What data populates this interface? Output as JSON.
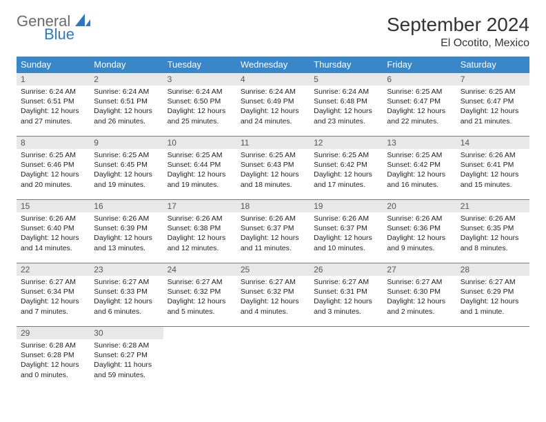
{
  "logo": {
    "text1": "General",
    "text2": "Blue"
  },
  "title": "September 2024",
  "location": "El Ocotito, Mexico",
  "header_bg": "#3a87c7",
  "header_fg": "#ffffff",
  "daynum_bg": "#e8e8e8",
  "border_color": "#3a87c7",
  "weekdays": [
    "Sunday",
    "Monday",
    "Tuesday",
    "Wednesday",
    "Thursday",
    "Friday",
    "Saturday"
  ],
  "days": [
    {
      "n": "1",
      "sunrise": "Sunrise: 6:24 AM",
      "sunset": "Sunset: 6:51 PM",
      "day": "Daylight: 12 hours and 27 minutes."
    },
    {
      "n": "2",
      "sunrise": "Sunrise: 6:24 AM",
      "sunset": "Sunset: 6:51 PM",
      "day": "Daylight: 12 hours and 26 minutes."
    },
    {
      "n": "3",
      "sunrise": "Sunrise: 6:24 AM",
      "sunset": "Sunset: 6:50 PM",
      "day": "Daylight: 12 hours and 25 minutes."
    },
    {
      "n": "4",
      "sunrise": "Sunrise: 6:24 AM",
      "sunset": "Sunset: 6:49 PM",
      "day": "Daylight: 12 hours and 24 minutes."
    },
    {
      "n": "5",
      "sunrise": "Sunrise: 6:24 AM",
      "sunset": "Sunset: 6:48 PM",
      "day": "Daylight: 12 hours and 23 minutes."
    },
    {
      "n": "6",
      "sunrise": "Sunrise: 6:25 AM",
      "sunset": "Sunset: 6:47 PM",
      "day": "Daylight: 12 hours and 22 minutes."
    },
    {
      "n": "7",
      "sunrise": "Sunrise: 6:25 AM",
      "sunset": "Sunset: 6:47 PM",
      "day": "Daylight: 12 hours and 21 minutes."
    },
    {
      "n": "8",
      "sunrise": "Sunrise: 6:25 AM",
      "sunset": "Sunset: 6:46 PM",
      "day": "Daylight: 12 hours and 20 minutes."
    },
    {
      "n": "9",
      "sunrise": "Sunrise: 6:25 AM",
      "sunset": "Sunset: 6:45 PM",
      "day": "Daylight: 12 hours and 19 minutes."
    },
    {
      "n": "10",
      "sunrise": "Sunrise: 6:25 AM",
      "sunset": "Sunset: 6:44 PM",
      "day": "Daylight: 12 hours and 19 minutes."
    },
    {
      "n": "11",
      "sunrise": "Sunrise: 6:25 AM",
      "sunset": "Sunset: 6:43 PM",
      "day": "Daylight: 12 hours and 18 minutes."
    },
    {
      "n": "12",
      "sunrise": "Sunrise: 6:25 AM",
      "sunset": "Sunset: 6:42 PM",
      "day": "Daylight: 12 hours and 17 minutes."
    },
    {
      "n": "13",
      "sunrise": "Sunrise: 6:25 AM",
      "sunset": "Sunset: 6:42 PM",
      "day": "Daylight: 12 hours and 16 minutes."
    },
    {
      "n": "14",
      "sunrise": "Sunrise: 6:26 AM",
      "sunset": "Sunset: 6:41 PM",
      "day": "Daylight: 12 hours and 15 minutes."
    },
    {
      "n": "15",
      "sunrise": "Sunrise: 6:26 AM",
      "sunset": "Sunset: 6:40 PM",
      "day": "Daylight: 12 hours and 14 minutes."
    },
    {
      "n": "16",
      "sunrise": "Sunrise: 6:26 AM",
      "sunset": "Sunset: 6:39 PM",
      "day": "Daylight: 12 hours and 13 minutes."
    },
    {
      "n": "17",
      "sunrise": "Sunrise: 6:26 AM",
      "sunset": "Sunset: 6:38 PM",
      "day": "Daylight: 12 hours and 12 minutes."
    },
    {
      "n": "18",
      "sunrise": "Sunrise: 6:26 AM",
      "sunset": "Sunset: 6:37 PM",
      "day": "Daylight: 12 hours and 11 minutes."
    },
    {
      "n": "19",
      "sunrise": "Sunrise: 6:26 AM",
      "sunset": "Sunset: 6:37 PM",
      "day": "Daylight: 12 hours and 10 minutes."
    },
    {
      "n": "20",
      "sunrise": "Sunrise: 6:26 AM",
      "sunset": "Sunset: 6:36 PM",
      "day": "Daylight: 12 hours and 9 minutes."
    },
    {
      "n": "21",
      "sunrise": "Sunrise: 6:26 AM",
      "sunset": "Sunset: 6:35 PM",
      "day": "Daylight: 12 hours and 8 minutes."
    },
    {
      "n": "22",
      "sunrise": "Sunrise: 6:27 AM",
      "sunset": "Sunset: 6:34 PM",
      "day": "Daylight: 12 hours and 7 minutes."
    },
    {
      "n": "23",
      "sunrise": "Sunrise: 6:27 AM",
      "sunset": "Sunset: 6:33 PM",
      "day": "Daylight: 12 hours and 6 minutes."
    },
    {
      "n": "24",
      "sunrise": "Sunrise: 6:27 AM",
      "sunset": "Sunset: 6:32 PM",
      "day": "Daylight: 12 hours and 5 minutes."
    },
    {
      "n": "25",
      "sunrise": "Sunrise: 6:27 AM",
      "sunset": "Sunset: 6:32 PM",
      "day": "Daylight: 12 hours and 4 minutes."
    },
    {
      "n": "26",
      "sunrise": "Sunrise: 6:27 AM",
      "sunset": "Sunset: 6:31 PM",
      "day": "Daylight: 12 hours and 3 minutes."
    },
    {
      "n": "27",
      "sunrise": "Sunrise: 6:27 AM",
      "sunset": "Sunset: 6:30 PM",
      "day": "Daylight: 12 hours and 2 minutes."
    },
    {
      "n": "28",
      "sunrise": "Sunrise: 6:27 AM",
      "sunset": "Sunset: 6:29 PM",
      "day": "Daylight: 12 hours and 1 minute."
    },
    {
      "n": "29",
      "sunrise": "Sunrise: 6:28 AM",
      "sunset": "Sunset: 6:28 PM",
      "day": "Daylight: 12 hours and 0 minutes."
    },
    {
      "n": "30",
      "sunrise": "Sunrise: 6:28 AM",
      "sunset": "Sunset: 6:27 PM",
      "day": "Daylight: 11 hours and 59 minutes."
    }
  ]
}
